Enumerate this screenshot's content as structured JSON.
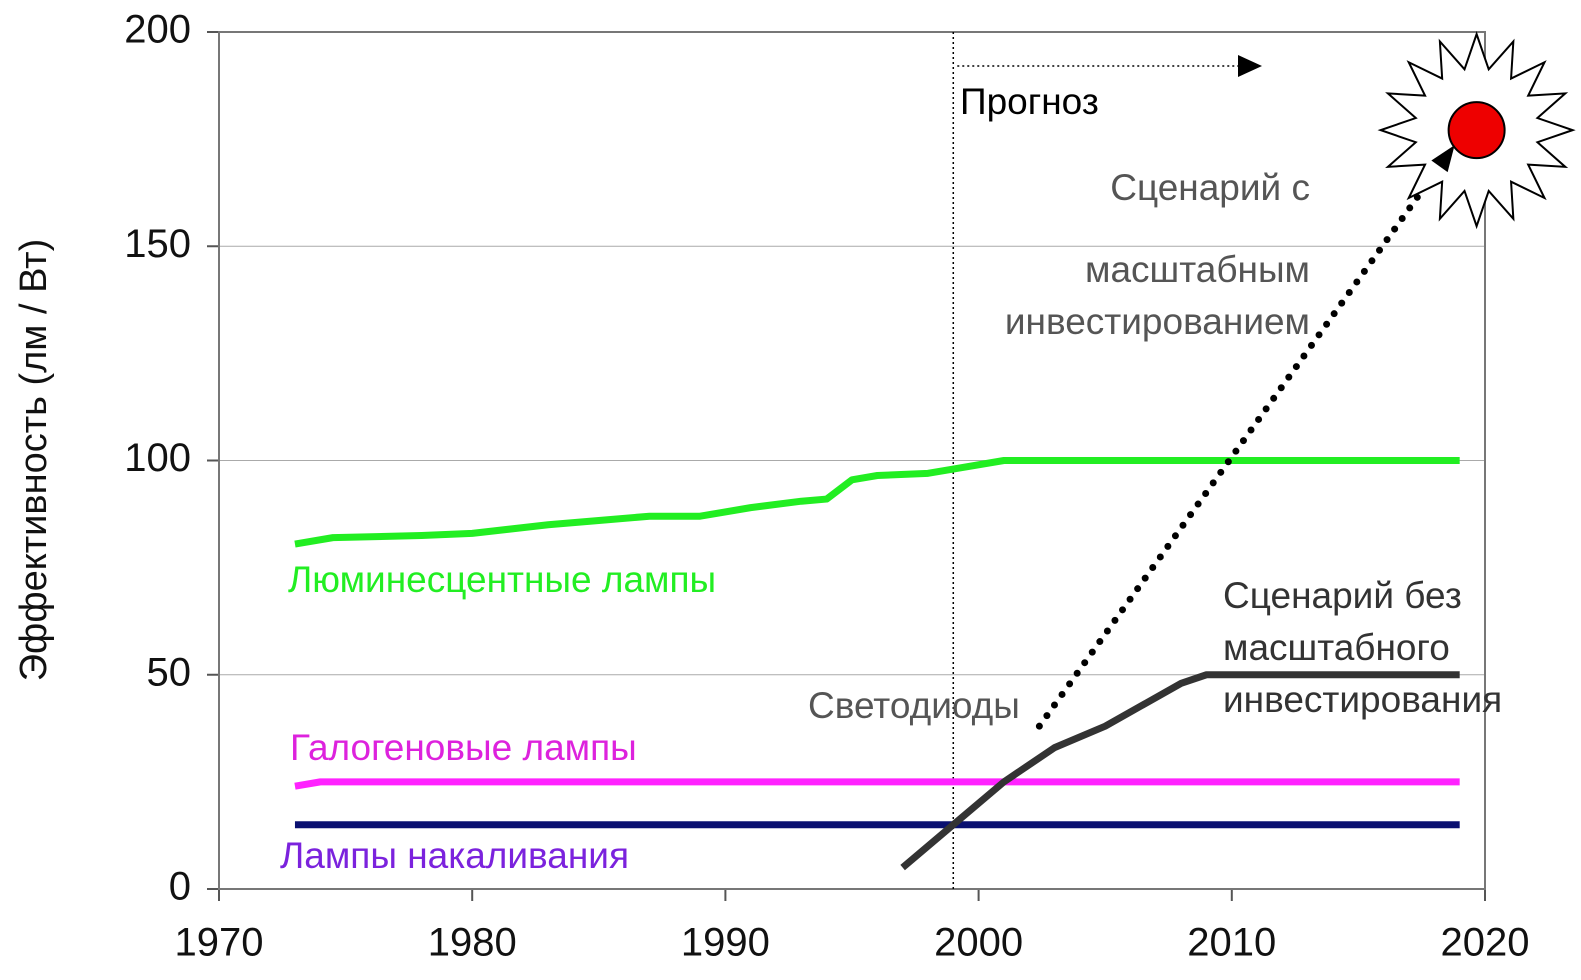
{
  "chart_data": {
    "type": "line",
    "ylabel": "Эффективность (лм / Вт)",
    "xlim": [
      1970,
      2020
    ],
    "xticks": [
      1970,
      1980,
      1990,
      2000,
      2010,
      2020
    ],
    "ylim": [
      0,
      200
    ],
    "yticks": [
      0,
      50,
      100,
      150,
      200
    ],
    "grid": true,
    "forecast_start": 1999,
    "series": [
      {
        "color": "#22ee22",
        "style": "solid",
        "x": [
          1973,
          1974.5,
          1978,
          1980,
          1983,
          1985,
          1987,
          1989,
          1991,
          1993,
          1994,
          1995,
          1996,
          1998,
          1999,
          2001,
          2019
        ],
        "values": [
          80.5,
          82,
          82.5,
          83,
          85,
          86,
          87,
          87,
          89,
          90.5,
          91,
          95.5,
          96.5,
          97,
          98,
          100,
          100
        ]
      },
      {
        "color": "#ff22ff",
        "style": "solid",
        "x": [
          1973,
          1974,
          2019
        ],
        "values": [
          24,
          25,
          25
        ]
      },
      {
        "color": "#0a1070",
        "style": "solid",
        "x": [
          1973,
          2019
        ],
        "values": [
          15,
          15
        ]
      },
      {
        "color": "#333333",
        "style": "solid",
        "x": [
          1997,
          1999,
          2001,
          2003,
          2005,
          2008,
          2009,
          2019
        ],
        "values": [
          5,
          15,
          25,
          33,
          38,
          48,
          50,
          50
        ]
      },
      {
        "color": "#000000",
        "style": "dotted",
        "x": [
          2002.4,
          2018.8
        ],
        "values": [
          38,
          173.6
        ]
      }
    ],
    "annotations": {
      "forecast": "Прогноз",
      "fluorescent": "Люминесцентные лампы",
      "halogen": "Галогеновые лампы",
      "incandescent": "Лампы накаливания",
      "led": "Светодиоды",
      "scenario_high": [
        "Сценарий с",
        "масштабным",
        "инвестированием"
      ],
      "scenario_low": [
        "Сценарий без",
        "масштабного",
        "инвестирования"
      ]
    }
  }
}
